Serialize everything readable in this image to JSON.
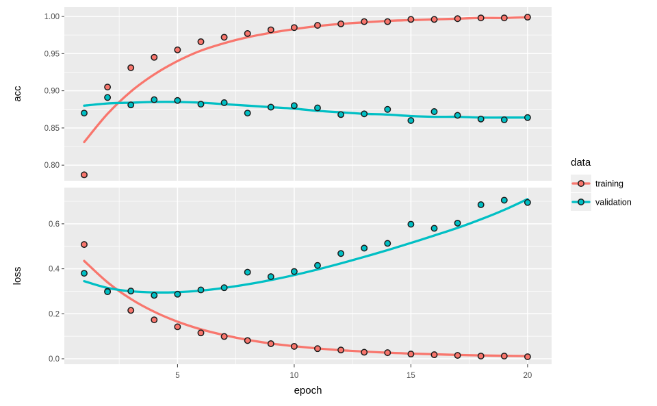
{
  "chart_data": {
    "type": "scatter",
    "title": "",
    "xlabel": "epoch",
    "panel_background": "#EBEBEB",
    "grid_color": "#FFFFFF",
    "tick_label_color": "#4d4d4d",
    "x": [
      1,
      2,
      3,
      4,
      5,
      6,
      7,
      8,
      9,
      10,
      11,
      12,
      13,
      14,
      15,
      16,
      17,
      18,
      19,
      20
    ],
    "xlim": [
      0.15,
      21.05
    ],
    "xticks": {
      "values": [
        5,
        10,
        15,
        20
      ],
      "labels": [
        "5",
        "10",
        "15",
        "20"
      ]
    },
    "xminor": [
      2.5,
      7.5,
      12.5,
      17.5
    ],
    "facets": [
      {
        "id": "acc",
        "ylabel": "acc",
        "ylim": [
          0.778,
          1.013
        ],
        "yticks": {
          "values": [
            1.0,
            0.95,
            0.9,
            0.85,
            0.8
          ],
          "labels": [
            "1.00",
            "0.95",
            "0.90",
            "0.85",
            "0.80"
          ]
        },
        "yminor": [
          0.975,
          0.925,
          0.875,
          0.825
        ]
      },
      {
        "id": "loss",
        "ylabel": "loss",
        "ylim": [
          -0.025,
          0.761
        ],
        "yticks": {
          "values": [
            0.6,
            0.4,
            0.2,
            0.0
          ],
          "labels": [
            "0.6",
            "0.4",
            "0.2",
            "0.0"
          ]
        },
        "yminor": [
          0.7,
          0.5,
          0.3,
          0.1
        ]
      }
    ],
    "series": [
      {
        "name": "training",
        "color": "#F8766D",
        "acc": [
          0.787,
          0.905,
          0.931,
          0.945,
          0.955,
          0.966,
          0.972,
          0.977,
          0.982,
          0.985,
          0.988,
          0.99,
          0.993,
          0.993,
          0.996,
          0.996,
          0.997,
          0.998,
          0.998,
          0.999
        ],
        "acc_smooth": [
          0.831,
          0.869,
          0.899,
          0.922,
          0.94,
          0.954,
          0.964,
          0.972,
          0.978,
          0.983,
          0.987,
          0.99,
          0.992,
          0.994,
          0.995,
          0.996,
          0.997,
          0.998,
          0.998,
          0.999
        ],
        "loss": [
          0.508,
          0.3,
          0.215,
          0.173,
          0.142,
          0.115,
          0.099,
          0.081,
          0.067,
          0.055,
          0.045,
          0.039,
          0.029,
          0.027,
          0.021,
          0.018,
          0.015,
          0.012,
          0.012,
          0.009
        ],
        "loss_smooth": [
          0.435,
          0.34,
          0.266,
          0.209,
          0.165,
          0.131,
          0.105,
          0.084,
          0.068,
          0.056,
          0.046,
          0.038,
          0.032,
          0.027,
          0.023,
          0.02,
          0.017,
          0.015,
          0.013,
          0.012
        ]
      },
      {
        "name": "validation",
        "color": "#00BFC4",
        "acc": [
          0.87,
          0.891,
          0.881,
          0.888,
          0.887,
          0.882,
          0.884,
          0.87,
          0.878,
          0.88,
          0.877,
          0.868,
          0.869,
          0.875,
          0.86,
          0.872,
          0.867,
          0.862,
          0.861,
          0.864
        ],
        "acc_smooth": [
          0.88,
          0.883,
          0.884,
          0.885,
          0.885,
          0.884,
          0.882,
          0.88,
          0.878,
          0.876,
          0.873,
          0.871,
          0.869,
          0.868,
          0.866,
          0.865,
          0.865,
          0.864,
          0.864,
          0.864
        ],
        "loss": [
          0.38,
          0.298,
          0.301,
          0.282,
          0.287,
          0.306,
          0.316,
          0.385,
          0.365,
          0.388,
          0.415,
          0.468,
          0.492,
          0.513,
          0.598,
          0.58,
          0.603,
          0.685,
          0.705,
          0.695
        ],
        "loss_smooth": [
          0.345,
          0.315,
          0.3,
          0.295,
          0.296,
          0.303,
          0.315,
          0.331,
          0.35,
          0.372,
          0.397,
          0.424,
          0.453,
          0.483,
          0.515,
          0.548,
          0.582,
          0.62,
          0.662,
          0.71
        ]
      }
    ],
    "legend": {
      "title": "data",
      "position": "right",
      "key_background": "#EFEFEF"
    }
  }
}
